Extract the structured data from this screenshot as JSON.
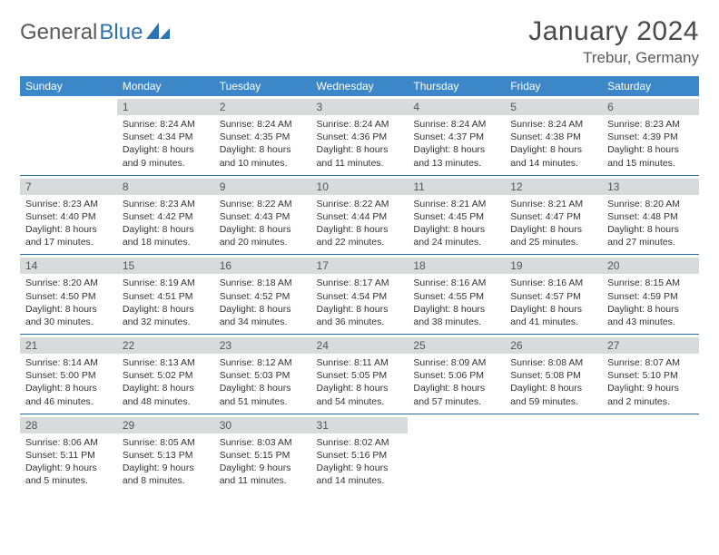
{
  "brand": {
    "part1": "General",
    "part2": "Blue"
  },
  "title": "January 2024",
  "location": "Trebur, Germany",
  "colors": {
    "header_bg": "#3b87c8",
    "header_text": "#ffffff",
    "daynum_bg": "#d9dadb",
    "row_border": "#2d6aa3",
    "brand_blue": "#2d72b5",
    "text": "#333333"
  },
  "weekdays": [
    "Sunday",
    "Monday",
    "Tuesday",
    "Wednesday",
    "Thursday",
    "Friday",
    "Saturday"
  ],
  "weeks": [
    [
      {
        "day": "",
        "sunrise": "",
        "sunset": "",
        "daylight": ""
      },
      {
        "day": "1",
        "sunrise": "Sunrise: 8:24 AM",
        "sunset": "Sunset: 4:34 PM",
        "daylight": "Daylight: 8 hours and 9 minutes."
      },
      {
        "day": "2",
        "sunrise": "Sunrise: 8:24 AM",
        "sunset": "Sunset: 4:35 PM",
        "daylight": "Daylight: 8 hours and 10 minutes."
      },
      {
        "day": "3",
        "sunrise": "Sunrise: 8:24 AM",
        "sunset": "Sunset: 4:36 PM",
        "daylight": "Daylight: 8 hours and 11 minutes."
      },
      {
        "day": "4",
        "sunrise": "Sunrise: 8:24 AM",
        "sunset": "Sunset: 4:37 PM",
        "daylight": "Daylight: 8 hours and 13 minutes."
      },
      {
        "day": "5",
        "sunrise": "Sunrise: 8:24 AM",
        "sunset": "Sunset: 4:38 PM",
        "daylight": "Daylight: 8 hours and 14 minutes."
      },
      {
        "day": "6",
        "sunrise": "Sunrise: 8:23 AM",
        "sunset": "Sunset: 4:39 PM",
        "daylight": "Daylight: 8 hours and 15 minutes."
      }
    ],
    [
      {
        "day": "7",
        "sunrise": "Sunrise: 8:23 AM",
        "sunset": "Sunset: 4:40 PM",
        "daylight": "Daylight: 8 hours and 17 minutes."
      },
      {
        "day": "8",
        "sunrise": "Sunrise: 8:23 AM",
        "sunset": "Sunset: 4:42 PM",
        "daylight": "Daylight: 8 hours and 18 minutes."
      },
      {
        "day": "9",
        "sunrise": "Sunrise: 8:22 AM",
        "sunset": "Sunset: 4:43 PM",
        "daylight": "Daylight: 8 hours and 20 minutes."
      },
      {
        "day": "10",
        "sunrise": "Sunrise: 8:22 AM",
        "sunset": "Sunset: 4:44 PM",
        "daylight": "Daylight: 8 hours and 22 minutes."
      },
      {
        "day": "11",
        "sunrise": "Sunrise: 8:21 AM",
        "sunset": "Sunset: 4:45 PM",
        "daylight": "Daylight: 8 hours and 24 minutes."
      },
      {
        "day": "12",
        "sunrise": "Sunrise: 8:21 AM",
        "sunset": "Sunset: 4:47 PM",
        "daylight": "Daylight: 8 hours and 25 minutes."
      },
      {
        "day": "13",
        "sunrise": "Sunrise: 8:20 AM",
        "sunset": "Sunset: 4:48 PM",
        "daylight": "Daylight: 8 hours and 27 minutes."
      }
    ],
    [
      {
        "day": "14",
        "sunrise": "Sunrise: 8:20 AM",
        "sunset": "Sunset: 4:50 PM",
        "daylight": "Daylight: 8 hours and 30 minutes."
      },
      {
        "day": "15",
        "sunrise": "Sunrise: 8:19 AM",
        "sunset": "Sunset: 4:51 PM",
        "daylight": "Daylight: 8 hours and 32 minutes."
      },
      {
        "day": "16",
        "sunrise": "Sunrise: 8:18 AM",
        "sunset": "Sunset: 4:52 PM",
        "daylight": "Daylight: 8 hours and 34 minutes."
      },
      {
        "day": "17",
        "sunrise": "Sunrise: 8:17 AM",
        "sunset": "Sunset: 4:54 PM",
        "daylight": "Daylight: 8 hours and 36 minutes."
      },
      {
        "day": "18",
        "sunrise": "Sunrise: 8:16 AM",
        "sunset": "Sunset: 4:55 PM",
        "daylight": "Daylight: 8 hours and 38 minutes."
      },
      {
        "day": "19",
        "sunrise": "Sunrise: 8:16 AM",
        "sunset": "Sunset: 4:57 PM",
        "daylight": "Daylight: 8 hours and 41 minutes."
      },
      {
        "day": "20",
        "sunrise": "Sunrise: 8:15 AM",
        "sunset": "Sunset: 4:59 PM",
        "daylight": "Daylight: 8 hours and 43 minutes."
      }
    ],
    [
      {
        "day": "21",
        "sunrise": "Sunrise: 8:14 AM",
        "sunset": "Sunset: 5:00 PM",
        "daylight": "Daylight: 8 hours and 46 minutes."
      },
      {
        "day": "22",
        "sunrise": "Sunrise: 8:13 AM",
        "sunset": "Sunset: 5:02 PM",
        "daylight": "Daylight: 8 hours and 48 minutes."
      },
      {
        "day": "23",
        "sunrise": "Sunrise: 8:12 AM",
        "sunset": "Sunset: 5:03 PM",
        "daylight": "Daylight: 8 hours and 51 minutes."
      },
      {
        "day": "24",
        "sunrise": "Sunrise: 8:11 AM",
        "sunset": "Sunset: 5:05 PM",
        "daylight": "Daylight: 8 hours and 54 minutes."
      },
      {
        "day": "25",
        "sunrise": "Sunrise: 8:09 AM",
        "sunset": "Sunset: 5:06 PM",
        "daylight": "Daylight: 8 hours and 57 minutes."
      },
      {
        "day": "26",
        "sunrise": "Sunrise: 8:08 AM",
        "sunset": "Sunset: 5:08 PM",
        "daylight": "Daylight: 8 hours and 59 minutes."
      },
      {
        "day": "27",
        "sunrise": "Sunrise: 8:07 AM",
        "sunset": "Sunset: 5:10 PM",
        "daylight": "Daylight: 9 hours and 2 minutes."
      }
    ],
    [
      {
        "day": "28",
        "sunrise": "Sunrise: 8:06 AM",
        "sunset": "Sunset: 5:11 PM",
        "daylight": "Daylight: 9 hours and 5 minutes."
      },
      {
        "day": "29",
        "sunrise": "Sunrise: 8:05 AM",
        "sunset": "Sunset: 5:13 PM",
        "daylight": "Daylight: 9 hours and 8 minutes."
      },
      {
        "day": "30",
        "sunrise": "Sunrise: 8:03 AM",
        "sunset": "Sunset: 5:15 PM",
        "daylight": "Daylight: 9 hours and 11 minutes."
      },
      {
        "day": "31",
        "sunrise": "Sunrise: 8:02 AM",
        "sunset": "Sunset: 5:16 PM",
        "daylight": "Daylight: 9 hours and 14 minutes."
      },
      {
        "day": "",
        "sunrise": "",
        "sunset": "",
        "daylight": ""
      },
      {
        "day": "",
        "sunrise": "",
        "sunset": "",
        "daylight": ""
      },
      {
        "day": "",
        "sunrise": "",
        "sunset": "",
        "daylight": ""
      }
    ]
  ]
}
